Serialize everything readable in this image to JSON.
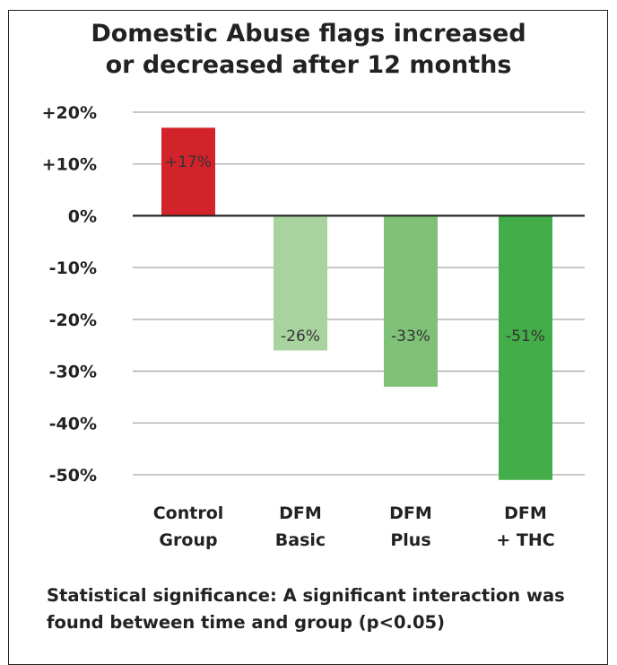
{
  "chart_data": {
    "type": "bar",
    "title_lines": [
      "Domestic Abuse flags increased",
      "or decreased after 12 months"
    ],
    "categories": [
      [
        "Control",
        "Group"
      ],
      [
        "DFM",
        "Basic"
      ],
      [
        "DFM",
        "Plus"
      ],
      [
        "DFM",
        "+ THC"
      ]
    ],
    "values": [
      17,
      -26,
      -33,
      -51
    ],
    "value_labels": [
      "+17%",
      "-26%",
      "-33%",
      "-51%"
    ],
    "bar_colors": [
      "#d2232a",
      "#a9d39e",
      "#80c178",
      "#43ad49"
    ],
    "y_ticks": [
      20,
      10,
      0,
      -10,
      -20,
      -30,
      -40,
      -50
    ],
    "y_tick_labels": [
      "+20%",
      "+10%",
      "0%",
      "-10%",
      "-20%",
      "-30%",
      "-40%",
      "-50%"
    ],
    "ylim": [
      -50,
      20
    ],
    "grid": true,
    "legend": "none",
    "note": "Statistical significance: A significant interaction was found between time and group (p<0.05)"
  }
}
